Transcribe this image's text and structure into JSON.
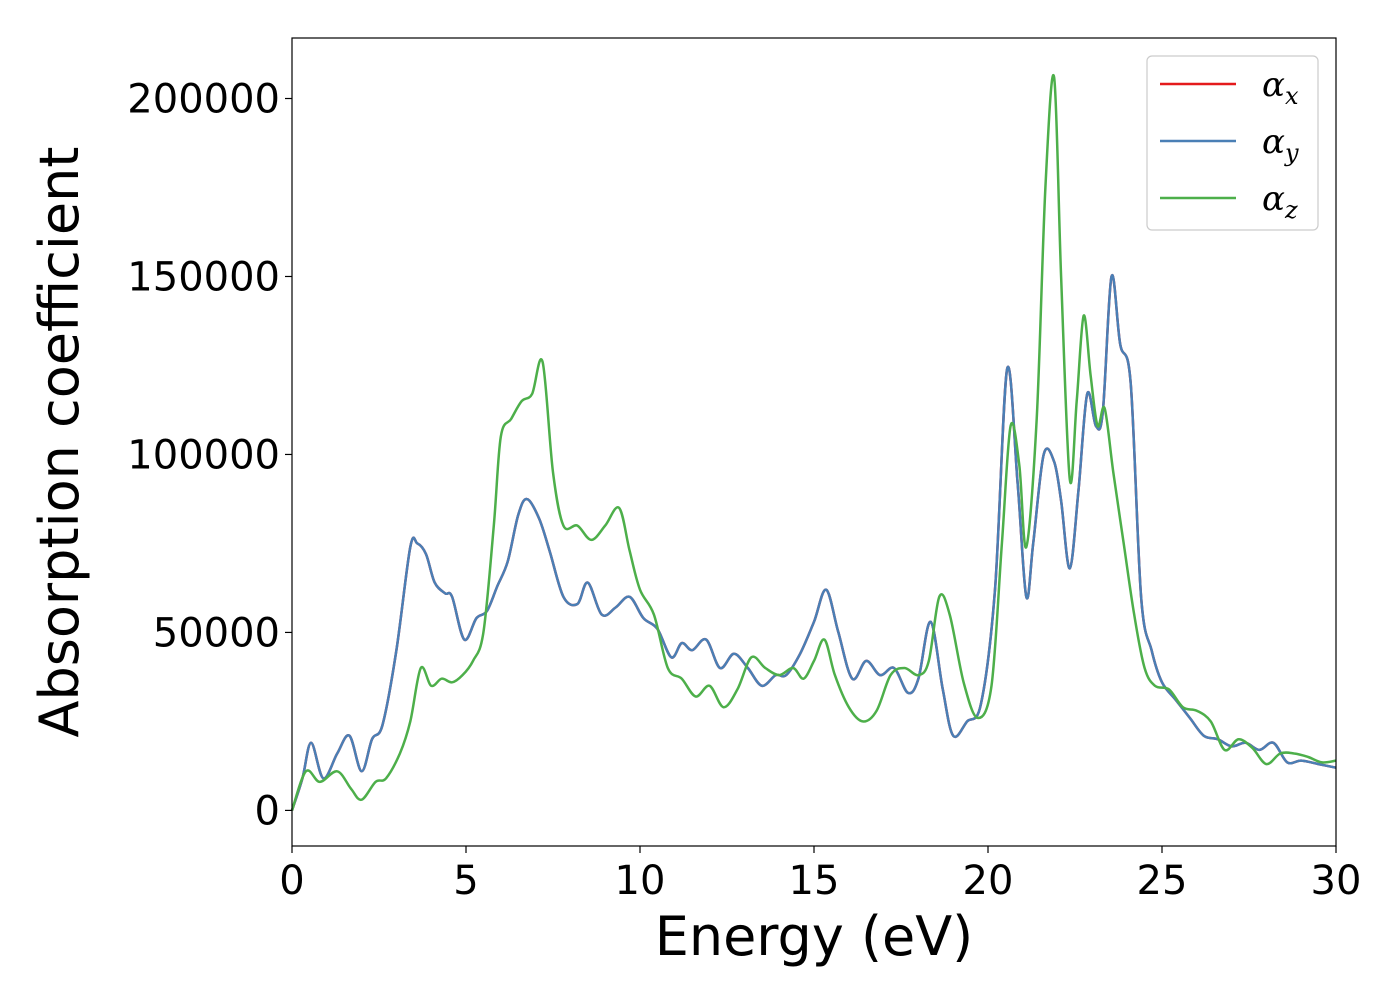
{
  "chart_data": {
    "type": "line",
    "xlabel": "Energy (eV)",
    "ylabel": "Absorption coefficient",
    "xlim": [
      0,
      30
    ],
    "ylim": [
      -10000,
      217000
    ],
    "xticks": [
      "0",
      "5",
      "10",
      "15",
      "20",
      "25",
      "30"
    ],
    "yticks": [
      "0",
      "50000",
      "100000",
      "150000",
      "200000"
    ],
    "grid": false,
    "legend_position": "top-right",
    "series": [
      {
        "name": "α_x",
        "symbol": "α",
        "subscript": "x",
        "color": "#e41a1c",
        "x": [
          0,
          0.3,
          0.55,
          0.9,
          1.3,
          1.65,
          2.0,
          2.3,
          2.6,
          3.0,
          3.4,
          3.6,
          3.85,
          4.1,
          4.4,
          4.6,
          4.95,
          5.3,
          5.6,
          5.9,
          6.2,
          6.5,
          6.75,
          7.1,
          7.4,
          7.8,
          8.2,
          8.5,
          8.9,
          9.3,
          9.7,
          10.1,
          10.5,
          10.9,
          11.2,
          11.5,
          11.9,
          12.3,
          12.7,
          13.1,
          13.5,
          13.9,
          14.2,
          14.6,
          15.0,
          15.35,
          15.7,
          16.1,
          16.5,
          16.9,
          17.3,
          17.7,
          18.0,
          18.35,
          18.7,
          19.0,
          19.4,
          19.8,
          20.2,
          20.55,
          20.85,
          21.1,
          21.3,
          21.6,
          21.9,
          22.1,
          22.35,
          22.6,
          22.85,
          23.1,
          23.3,
          23.55,
          23.8,
          24.1,
          24.4,
          24.7,
          25.0,
          25.4,
          25.8,
          26.2,
          26.6,
          27.0,
          27.4,
          27.8,
          28.2,
          28.6,
          29.0,
          29.5,
          30.0
        ],
        "y": [
          0,
          9000,
          19000,
          9000,
          16000,
          21000,
          11000,
          20000,
          24000,
          45000,
          74000,
          75000,
          72000,
          64000,
          61000,
          60000,
          48000,
          54000,
          56000,
          63000,
          70000,
          83000,
          87500,
          82000,
          73000,
          60000,
          58000,
          64000,
          55000,
          57000,
          60000,
          54000,
          51000,
          43000,
          47000,
          45000,
          48000,
          40000,
          44000,
          40000,
          35000,
          38000,
          38000,
          44000,
          53000,
          62000,
          50000,
          37000,
          42000,
          38000,
          40000,
          33000,
          37000,
          53000,
          34000,
          21000,
          25000,
          30000,
          62000,
          124000,
          92000,
          60000,
          75000,
          100000,
          98000,
          87000,
          68000,
          90000,
          117000,
          108000,
          112000,
          150000,
          131000,
          120000,
          60000,
          45000,
          36000,
          31000,
          26000,
          21000,
          20000,
          18000,
          19000,
          17000,
          19000,
          13500,
          14000,
          13000,
          12000
        ]
      },
      {
        "name": "α_y",
        "symbol": "α",
        "subscript": "y",
        "color": "#4a7fb5",
        "x": [
          0,
          0.3,
          0.55,
          0.9,
          1.3,
          1.65,
          2.0,
          2.3,
          2.6,
          3.0,
          3.4,
          3.6,
          3.85,
          4.1,
          4.4,
          4.6,
          4.95,
          5.3,
          5.6,
          5.9,
          6.2,
          6.5,
          6.75,
          7.1,
          7.4,
          7.8,
          8.2,
          8.5,
          8.9,
          9.3,
          9.7,
          10.1,
          10.5,
          10.9,
          11.2,
          11.5,
          11.9,
          12.3,
          12.7,
          13.1,
          13.5,
          13.9,
          14.2,
          14.6,
          15.0,
          15.35,
          15.7,
          16.1,
          16.5,
          16.9,
          17.3,
          17.7,
          18.0,
          18.35,
          18.7,
          19.0,
          19.4,
          19.8,
          20.2,
          20.55,
          20.85,
          21.1,
          21.3,
          21.6,
          21.9,
          22.1,
          22.35,
          22.6,
          22.85,
          23.1,
          23.3,
          23.55,
          23.8,
          24.1,
          24.4,
          24.7,
          25.0,
          25.4,
          25.8,
          26.2,
          26.6,
          27.0,
          27.4,
          27.8,
          28.2,
          28.6,
          29.0,
          29.5,
          30.0
        ],
        "y": [
          0,
          9000,
          19000,
          9000,
          16000,
          21000,
          11000,
          20000,
          24000,
          45000,
          74000,
          75000,
          72000,
          64000,
          61000,
          60000,
          48000,
          54000,
          56000,
          63000,
          70000,
          83000,
          87500,
          82000,
          73000,
          60000,
          58000,
          64000,
          55000,
          57000,
          60000,
          54000,
          51000,
          43000,
          47000,
          45000,
          48000,
          40000,
          44000,
          40000,
          35000,
          38000,
          38000,
          44000,
          53000,
          62000,
          50000,
          37000,
          42000,
          38000,
          40000,
          33000,
          37000,
          53000,
          34000,
          21000,
          25000,
          30000,
          62000,
          124000,
          92000,
          60000,
          75000,
          100000,
          98000,
          87000,
          68000,
          90000,
          117000,
          108000,
          112000,
          150000,
          131000,
          120000,
          60000,
          45000,
          36000,
          31000,
          26000,
          21000,
          20000,
          18000,
          19000,
          17000,
          19000,
          13500,
          14000,
          13000,
          12000
        ]
      },
      {
        "name": "α_z",
        "symbol": "α",
        "subscript": "z",
        "color": "#4daf4a",
        "x": [
          0,
          0.4,
          0.8,
          1.3,
          1.7,
          2.0,
          2.4,
          2.7,
          3.1,
          3.4,
          3.7,
          4.0,
          4.3,
          4.6,
          4.9,
          5.2,
          5.5,
          5.8,
          6.0,
          6.3,
          6.6,
          6.9,
          7.2,
          7.5,
          7.8,
          8.2,
          8.6,
          9.0,
          9.4,
          9.7,
          10.0,
          10.4,
          10.8,
          11.2,
          11.6,
          12.0,
          12.4,
          12.8,
          13.2,
          13.6,
          14.0,
          14.4,
          14.7,
          15.0,
          15.3,
          15.6,
          16.0,
          16.4,
          16.8,
          17.2,
          17.6,
          18.0,
          18.3,
          18.6,
          18.9,
          19.3,
          19.7,
          20.1,
          20.4,
          20.65,
          20.9,
          21.1,
          21.4,
          21.65,
          21.9,
          22.1,
          22.35,
          22.55,
          22.75,
          22.95,
          23.15,
          23.35,
          23.6,
          23.9,
          24.2,
          24.5,
          24.8,
          25.2,
          25.6,
          26.0,
          26.4,
          26.8,
          27.2,
          27.6,
          28.0,
          28.4,
          28.8,
          29.2,
          29.6,
          30.0
        ],
        "y": [
          0,
          11000,
          8000,
          11000,
          6000,
          3000,
          8000,
          9000,
          16000,
          25000,
          40000,
          35000,
          37000,
          36000,
          38000,
          42000,
          50000,
          80000,
          105000,
          110000,
          115000,
          117000,
          126000,
          95000,
          80000,
          80000,
          76000,
          80000,
          85000,
          73000,
          62000,
          55000,
          40000,
          37000,
          32000,
          35000,
          29000,
          34000,
          43000,
          40000,
          38000,
          40000,
          37000,
          42000,
          48000,
          38000,
          29000,
          25000,
          28000,
          38000,
          40000,
          38000,
          42000,
          60000,
          55000,
          36000,
          26000,
          35000,
          75000,
          108000,
          97000,
          74000,
          110000,
          175000,
          206000,
          150000,
          93000,
          115000,
          139000,
          122000,
          108000,
          113000,
          95000,
          75000,
          55000,
          40000,
          35000,
          34000,
          29000,
          28000,
          25000,
          17000,
          20000,
          17500,
          13000,
          16000,
          16000,
          15000,
          13500,
          14000
        ]
      }
    ]
  }
}
